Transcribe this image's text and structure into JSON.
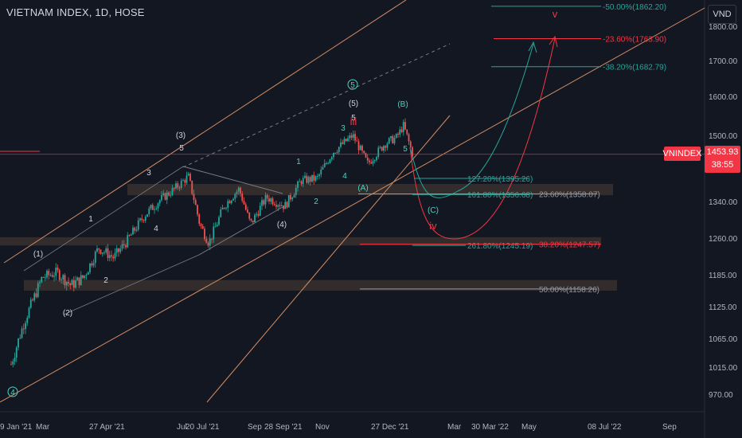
{
  "header": {
    "title": "VIETNAM INDEX, 1D, HOSE",
    "unit": "VND"
  },
  "price_badge": {
    "ticker": "VNINDEX",
    "price": "1453.93",
    "countdown": "38:55"
  },
  "colors": {
    "background": "#131722",
    "up": "#26a69a",
    "down": "#ef5350",
    "channel": "#d38c63",
    "fib_teal": "#26a69a",
    "fib_red": "#f23645",
    "fib_gray": "#9598a1",
    "zone": "#3d3530",
    "wave_white": "#d1d4dc",
    "wave_teal": "#4dd0c0",
    "wave_red": "#f23645"
  },
  "chart_data": {
    "type": "candlestick",
    "title": "VIETNAM INDEX, 1D, HOSE",
    "ylabel": "VND",
    "ylim": [
      940,
      1880
    ],
    "y_ticks": [
      "1800.00",
      "1700.00",
      "1600.00",
      "1500.00",
      "1420.00",
      "1340.00",
      "1260.00",
      "1185.00",
      "1125.00",
      "1065.00",
      "1015.00",
      "970.00"
    ],
    "x_ticks": [
      "9 Jan '21",
      "Mar",
      "27 Apr '21",
      "Jul",
      "20 Jul '21",
      "Sep",
      "28 Sep '21",
      "Nov",
      "27 Dec '21",
      "Mar",
      "30 Mar '22",
      "May",
      "08 Jul '22",
      "Sep"
    ],
    "price_path": [
      {
        "date": "2021-01-29",
        "close": 1020
      },
      {
        "date": "2021-02-10",
        "close": 1100
      },
      {
        "date": "2021-02-25",
        "close": 1180
      },
      {
        "date": "2021-03-10",
        "close": 1190
      },
      {
        "date": "2021-03-22",
        "close": 1165
      },
      {
        "date": "2021-04-02",
        "close": 1180
      },
      {
        "date": "2021-04-15",
        "close": 1240
      },
      {
        "date": "2021-04-28",
        "close": 1220
      },
      {
        "date": "2021-05-10",
        "close": 1255
      },
      {
        "date": "2021-05-25",
        "close": 1310
      },
      {
        "date": "2021-06-08",
        "close": 1345
      },
      {
        "date": "2021-06-20",
        "close": 1370
      },
      {
        "date": "2021-07-02",
        "close": 1400
      },
      {
        "date": "2021-07-12",
        "close": 1290
      },
      {
        "date": "2021-07-20",
        "close": 1250
      },
      {
        "date": "2021-08-02",
        "close": 1330
      },
      {
        "date": "2021-08-15",
        "close": 1370
      },
      {
        "date": "2021-08-25",
        "close": 1290
      },
      {
        "date": "2021-09-08",
        "close": 1350
      },
      {
        "date": "2021-09-24",
        "close": 1330
      },
      {
        "date": "2021-10-08",
        "close": 1390
      },
      {
        "date": "2021-10-22",
        "close": 1395
      },
      {
        "date": "2021-11-05",
        "close": 1460
      },
      {
        "date": "2021-11-22",
        "close": 1500
      },
      {
        "date": "2021-12-05",
        "close": 1430
      },
      {
        "date": "2021-12-20",
        "close": 1480
      },
      {
        "date": "2021-12-30",
        "close": 1495
      },
      {
        "date": "2022-01-05",
        "close": 1525
      },
      {
        "date": "2022-01-13",
        "close": 1454
      }
    ],
    "fib_levels": [
      {
        "label": "-50.00%(1862.20)",
        "value": 1862.2,
        "color": "teal"
      },
      {
        "label": "-23.60%(1763.90)",
        "value": 1763.9,
        "color": "red"
      },
      {
        "label": "-38.20%(1682.79)",
        "value": 1682.79,
        "color": "teal"
      },
      {
        "label": "127.20%(1395.26)",
        "value": 1395.26,
        "color": "teal"
      },
      {
        "label": "161.80%(1356.68)",
        "value": 1356.68,
        "color": "teal"
      },
      {
        "label": "23.60%(1358.07)",
        "value": 1358.07,
        "color": "gray"
      },
      {
        "label": "261.80%(1245.19)",
        "value": 1245.19,
        "color": "teal"
      },
      {
        "label": "38.20%(1247.57)",
        "value": 1247.57,
        "color": "red"
      },
      {
        "label": "50.00%(1158.26)",
        "value": 1158.26,
        "color": "gray"
      }
    ],
    "wave_labels": [
      {
        "text": "(1)",
        "color": "white"
      },
      {
        "text": "(2)",
        "color": "white"
      },
      {
        "text": "(3)",
        "color": "white"
      },
      {
        "text": "(4)",
        "color": "white"
      },
      {
        "text": "(5)",
        "color": "white"
      },
      {
        "text": "5",
        "color": "white"
      },
      {
        "text": "1",
        "color": "white"
      },
      {
        "text": "2",
        "color": "white"
      },
      {
        "text": "3",
        "color": "white"
      },
      {
        "text": "4",
        "color": "white"
      },
      {
        "text": "5",
        "color": "white"
      },
      {
        "text": "1",
        "color": "teal"
      },
      {
        "text": "2",
        "color": "teal"
      },
      {
        "text": "3",
        "color": "teal"
      },
      {
        "text": "4",
        "color": "teal"
      },
      {
        "text": "5",
        "color": "teal"
      },
      {
        "text": "(A)",
        "color": "teal"
      },
      {
        "text": "(B)",
        "color": "teal"
      },
      {
        "text": "(C)",
        "color": "teal"
      },
      {
        "text": "iii",
        "color": "red"
      },
      {
        "text": "iv",
        "color": "red"
      },
      {
        "text": "v",
        "color": "red"
      },
      {
        "text": "5",
        "color": "teal-circle"
      },
      {
        "text": "4",
        "color": "teal-circle"
      }
    ],
    "last_price": 1453.93
  }
}
